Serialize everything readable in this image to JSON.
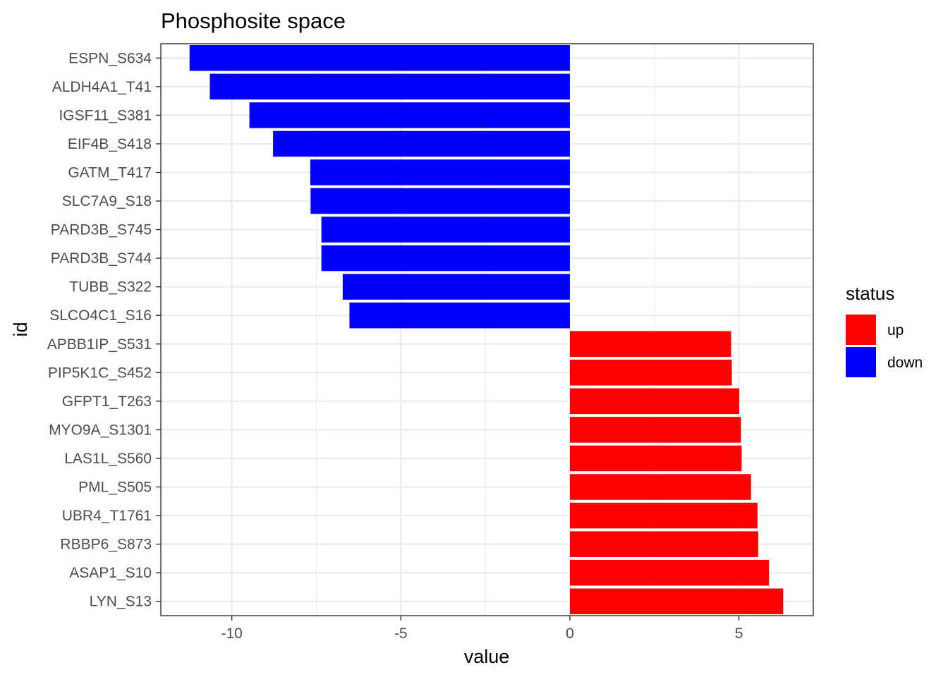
{
  "chart_data": {
    "type": "bar",
    "orientation": "horizontal",
    "title": "Phosphosite space",
    "xlabel": "value",
    "ylabel": "id",
    "xlim": [
      -12.1,
      7.2
    ],
    "xticks": [
      -10,
      -5,
      0,
      5
    ],
    "xtick_labels": [
      "-10",
      "-5",
      "0",
      "5"
    ],
    "grid": true,
    "legend": {
      "title": "status",
      "position": "right",
      "entries": [
        {
          "label": "up",
          "color": "#FF0000"
        },
        {
          "label": "down",
          "color": "#0000FF"
        }
      ]
    },
    "bars": [
      {
        "id": "ESPN_S634",
        "value": -11.25,
        "status": "down"
      },
      {
        "id": "ALDH4A1_T41",
        "value": -10.65,
        "status": "down"
      },
      {
        "id": "IGSF11_S381",
        "value": -9.48,
        "status": "down"
      },
      {
        "id": "EIF4B_S418",
        "value": -8.78,
        "status": "down"
      },
      {
        "id": "GATM_T417",
        "value": -7.68,
        "status": "down"
      },
      {
        "id": "SLC7A9_S18",
        "value": -7.67,
        "status": "down"
      },
      {
        "id": "PARD3B_S745",
        "value": -7.35,
        "status": "down"
      },
      {
        "id": "PARD3B_S744",
        "value": -7.35,
        "status": "down"
      },
      {
        "id": "TUBB_S322",
        "value": -6.72,
        "status": "down"
      },
      {
        "id": "SLCO4C1_S16",
        "value": -6.52,
        "status": "down"
      },
      {
        "id": "APBB1IP_S531",
        "value": 4.77,
        "status": "up"
      },
      {
        "id": "PIP5K1C_S452",
        "value": 4.79,
        "status": "up"
      },
      {
        "id": "GFPT1_T263",
        "value": 5.01,
        "status": "up"
      },
      {
        "id": "MYO9A_S1301",
        "value": 5.06,
        "status": "up"
      },
      {
        "id": "LAS1L_S560",
        "value": 5.08,
        "status": "up"
      },
      {
        "id": "PML_S505",
        "value": 5.36,
        "status": "up"
      },
      {
        "id": "UBR4_T1761",
        "value": 5.55,
        "status": "up"
      },
      {
        "id": "RBBP6_S873",
        "value": 5.57,
        "status": "up"
      },
      {
        "id": "ASAP1_S10",
        "value": 5.89,
        "status": "up"
      },
      {
        "id": "LYN_S13",
        "value": 6.31,
        "status": "up"
      }
    ]
  }
}
